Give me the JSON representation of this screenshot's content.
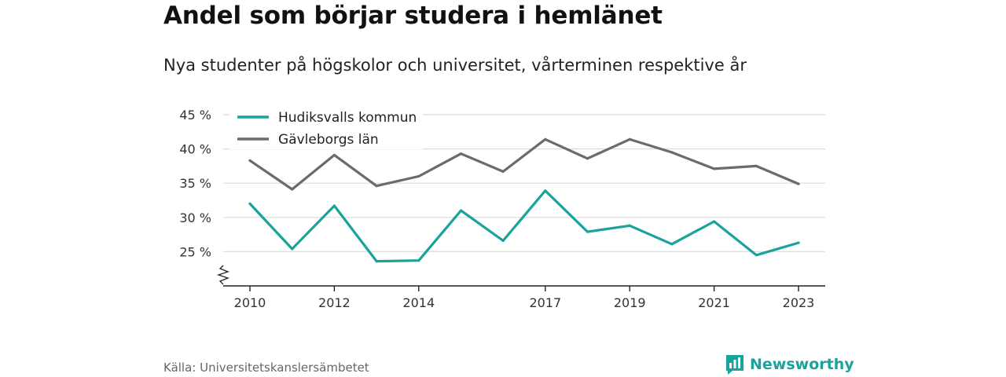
{
  "title": "Andel som börjar studera i hemlänet",
  "subtitle": "Nya studenter på högskolor och universitet, vårterminen respektive år",
  "source": "Källa: Universitetskanslersämbetet",
  "brand": {
    "name": "Newsworthy",
    "icon": "bar-chart-speech-bubble-icon",
    "color": "#1aa39a"
  },
  "chart_data": {
    "type": "line",
    "x": [
      2010,
      2011,
      2012,
      2013,
      2014,
      2015,
      2016,
      2017,
      2018,
      2019,
      2020,
      2021,
      2022,
      2023
    ],
    "x_tick_values": [
      2010,
      2012,
      2014,
      2017,
      2019,
      2021,
      2023
    ],
    "x_tick_labels": [
      "2010",
      "2012",
      "2014",
      "2017",
      "2019",
      "2021",
      "2023"
    ],
    "ylim": [
      20,
      45
    ],
    "y_ticks": [
      25,
      30,
      35,
      40,
      45
    ],
    "y_tick_labels": [
      "25 %",
      "30 %",
      "35 %",
      "40 %",
      "45 %"
    ],
    "y_axis_break": true,
    "grid": true,
    "legend_position": "top-left",
    "xlabel": "",
    "ylabel": "",
    "series": [
      {
        "name": "Hudiksvalls kommun",
        "color": "#1aa39a",
        "values": [
          32.0,
          25.4,
          31.7,
          23.6,
          23.7,
          31.0,
          26.6,
          33.9,
          27.9,
          28.8,
          26.1,
          29.4,
          24.5,
          26.3
        ]
      },
      {
        "name": "Gävleborgs län",
        "color": "#6c6a70",
        "values": [
          38.3,
          34.1,
          39.1,
          34.6,
          36.0,
          39.3,
          36.7,
          41.4,
          38.6,
          41.4,
          39.5,
          37.1,
          37.5,
          34.9
        ]
      }
    ]
  }
}
